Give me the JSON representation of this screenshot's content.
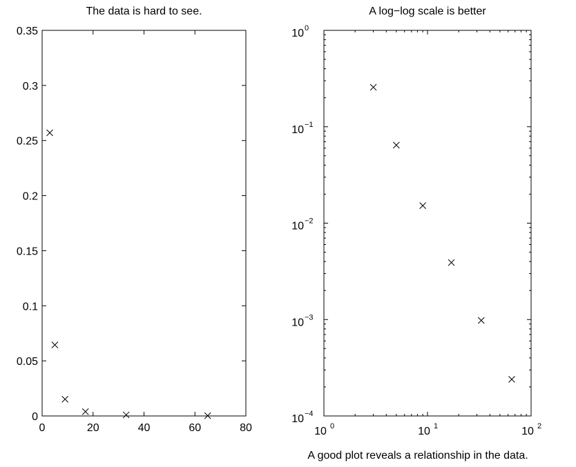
{
  "figure": {
    "caption": "A good plot reveals a relationship in the data."
  },
  "chart_data": [
    {
      "type": "scatter",
      "title": "The data is hard to see.",
      "xlabel": "",
      "ylabel": "",
      "xlim": [
        0,
        80
      ],
      "ylim": [
        0,
        0.35
      ],
      "xscale": "linear",
      "yscale": "linear",
      "grid": false,
      "marker": "x",
      "xticks": [
        0,
        20,
        40,
        60,
        80
      ],
      "xtick_labels": [
        "0",
        "20",
        "40",
        "60",
        "80"
      ],
      "yticks": [
        0,
        0.05,
        0.1,
        0.15,
        0.2,
        0.25,
        0.3,
        0.35
      ],
      "ytick_labels": [
        "0",
        "0.05",
        "0.1",
        "0.15",
        "0.2",
        "0.25",
        "0.3",
        "0.35"
      ],
      "series": [
        {
          "x": [
            3,
            5,
            9,
            17,
            33,
            65
          ],
          "y": [
            0.257,
            0.0645,
            0.0152,
            0.0039,
            0.00098,
            0.00024
          ]
        }
      ]
    },
    {
      "type": "scatter",
      "title": "A log−log scale is better",
      "xlabel": "",
      "ylabel": "",
      "xlim": [
        1,
        100
      ],
      "ylim": [
        0.0001,
        1
      ],
      "xscale": "log",
      "yscale": "log",
      "grid": false,
      "marker": "x",
      "xticks": [
        1,
        10,
        100
      ],
      "xtick_labels": [
        {
          "base": "10",
          "exp": "0"
        },
        {
          "base": "10",
          "exp": "1"
        },
        {
          "base": "10",
          "exp": "2"
        }
      ],
      "yticks": [
        0.0001,
        0.001,
        0.01,
        0.1,
        1
      ],
      "ytick_labels": [
        {
          "base": "10",
          "exp": "−4"
        },
        {
          "base": "10",
          "exp": "−3"
        },
        {
          "base": "10",
          "exp": "−2"
        },
        {
          "base": "10",
          "exp": "−1"
        },
        {
          "base": "10",
          "exp": "0"
        }
      ],
      "series": [
        {
          "x": [
            3,
            5,
            9,
            17,
            33,
            65
          ],
          "y": [
            0.257,
            0.0645,
            0.0152,
            0.0039,
            0.00098,
            0.00024
          ]
        }
      ]
    }
  ]
}
